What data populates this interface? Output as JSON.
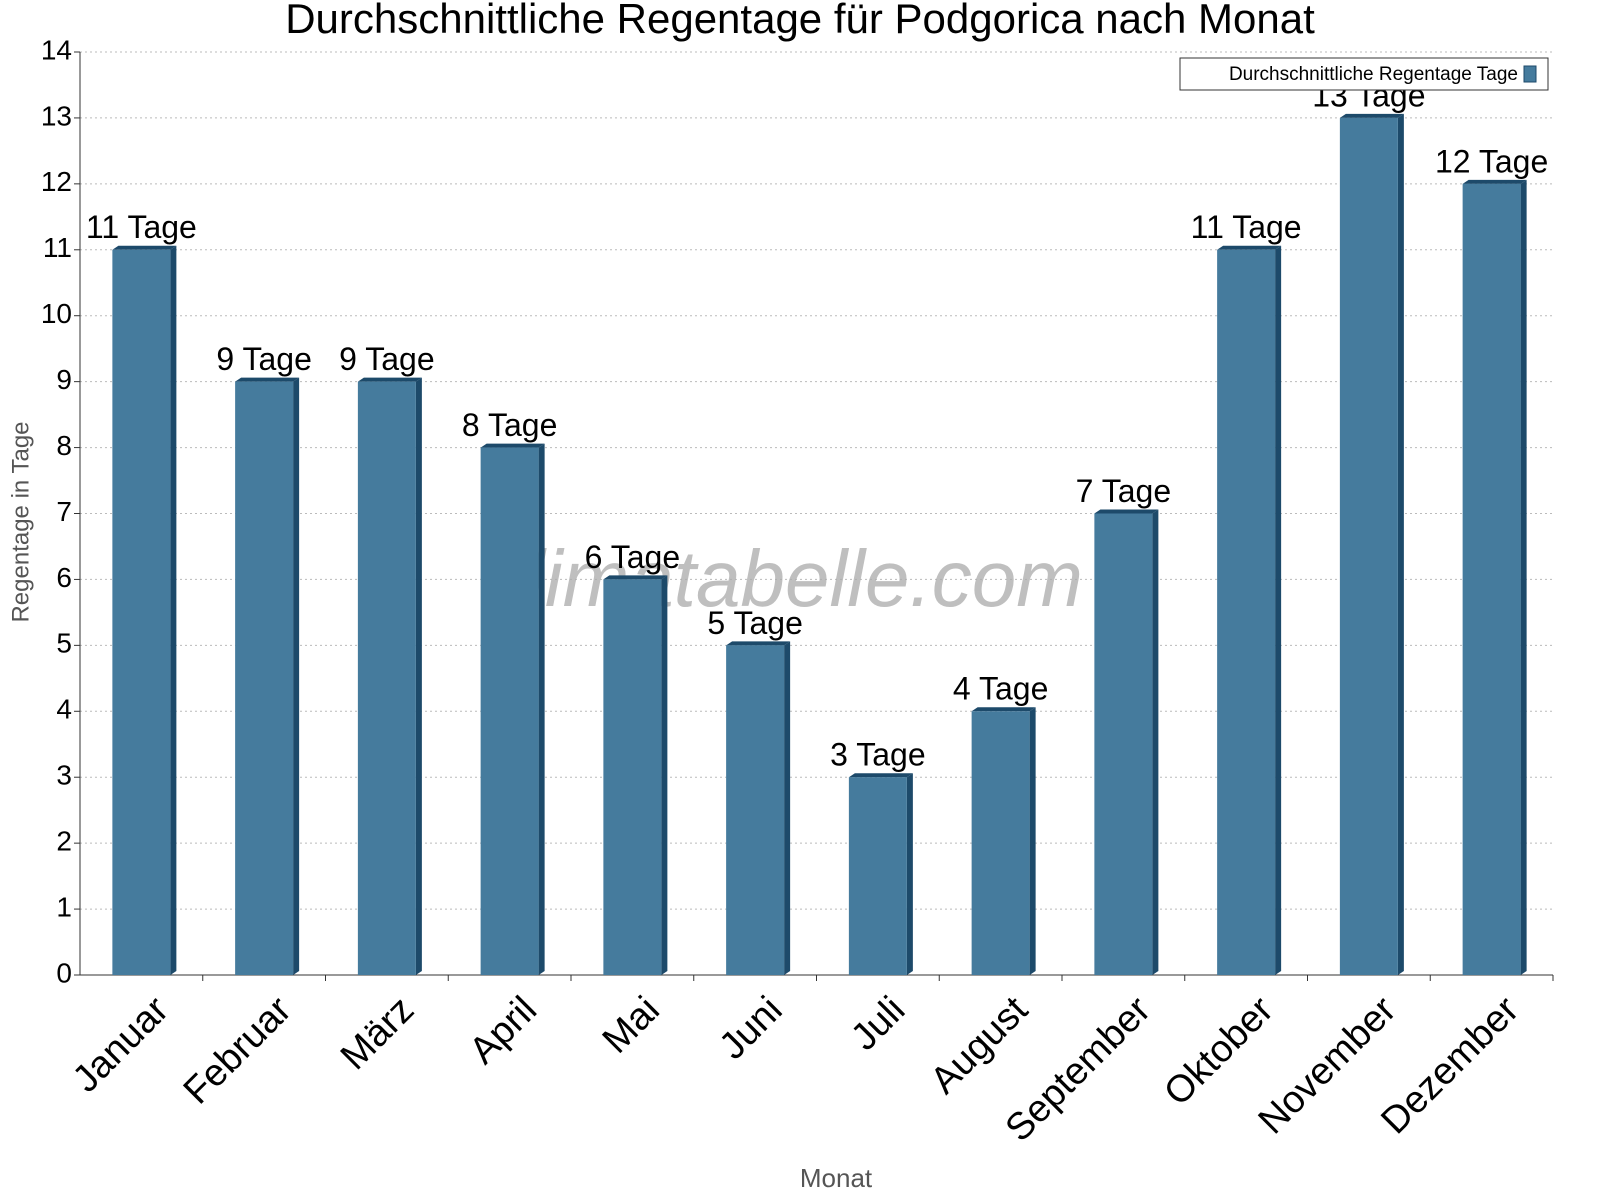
{
  "chart_data": {
    "type": "bar",
    "title": "Durchschnittliche Regentage für Podgorica nach Monat",
    "x_label": "Monat",
    "y_label": "Regentage in Tage",
    "watermark": "klimatabelle.com",
    "categories": [
      "Januar",
      "Februar",
      "März",
      "April",
      "Mai",
      "Juni",
      "Juli",
      "August",
      "September",
      "Oktober",
      "November",
      "Dezember"
    ],
    "series": [
      {
        "name": "Durchschnittliche Regentage Tage",
        "color": "#457b9d",
        "values": [
          11,
          9,
          9,
          8,
          6,
          5,
          3,
          4,
          7,
          11,
          13,
          12
        ],
        "value_labels": [
          "11 Tage",
          "9 Tage",
          "9 Tage",
          "8 Tage",
          "6 Tage",
          "5 Tage",
          "3 Tage",
          "4 Tage",
          "7 Tage",
          "11 Tage",
          "13 Tage",
          "12 Tage"
        ]
      }
    ],
    "ylim": [
      0,
      14
    ],
    "yticks": [
      0,
      1,
      2,
      3,
      4,
      5,
      6,
      7,
      8,
      9,
      10,
      11,
      12,
      13,
      14
    ],
    "grid": true,
    "legend": "top-right"
  }
}
